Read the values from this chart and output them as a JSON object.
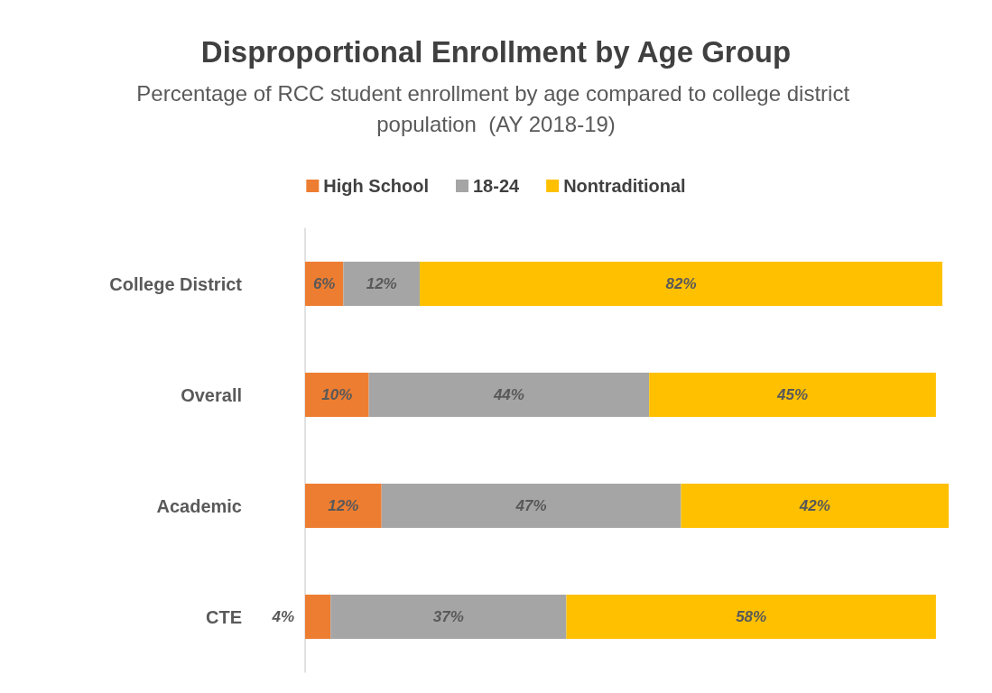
{
  "chart_data": {
    "type": "bar",
    "orientation": "horizontal",
    "stacked": true,
    "title": "Disproportional Enrollment by Age Group",
    "subtitle": "Percentage of RCC student enrollment by age compared to college district population  (AY 2018-19)",
    "categories": [
      "College District",
      "Overall",
      "Academic",
      "CTE"
    ],
    "series": [
      {
        "name": "High School",
        "color": "#ed7d31",
        "values": [
          6,
          10,
          12,
          4
        ],
        "value_labels": [
          "6%",
          "10%",
          "12%",
          "4%"
        ]
      },
      {
        "name": "18-24",
        "color": "#a5a5a5",
        "values": [
          12,
          44,
          47,
          37
        ],
        "value_labels": [
          "12%",
          "44%",
          "47%",
          "37%"
        ]
      },
      {
        "name": "Nontraditional",
        "color": "#ffc000",
        "values": [
          82,
          45,
          42,
          58
        ],
        "value_labels": [
          "82%",
          "45%",
          "42%",
          "58%"
        ]
      }
    ],
    "legend": "top",
    "tick_labels": "y"
  }
}
